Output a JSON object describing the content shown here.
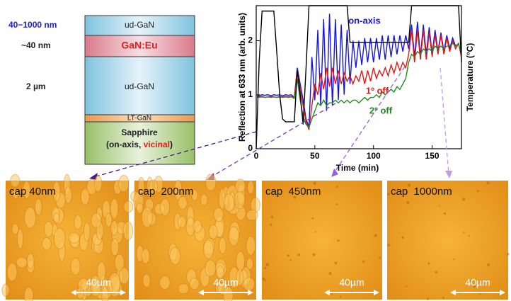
{
  "diagram": {
    "thickness_labels": [
      "40−1000 nm",
      "~40 nm",
      "2 µm"
    ],
    "layers": [
      "ud-GaN",
      "GaN:Eu",
      "ud-GaN",
      "LT-GaN"
    ],
    "substrate": {
      "name": "Sapphire",
      "orientation_prefix": "(on-axis, ",
      "orientation_highlight": "vicinal",
      "orientation_suffix": ")"
    }
  },
  "chart_data": {
    "type": "line",
    "x_label": "Time (min)",
    "y_label": "Reflection at 633 nm (arb. units)",
    "y2_label": "Temperature (°C)",
    "xlim": [
      0,
      175
    ],
    "xticks": [
      0,
      50,
      100,
      150
    ],
    "ylim": [
      0,
      2.65
    ],
    "yticks": [
      0,
      1,
      2
    ],
    "y2lim": [
      0,
      2.65
    ],
    "x": [
      0,
      2.5,
      5,
      7.5,
      10,
      12.5,
      15,
      17.5,
      20,
      22.5,
      25,
      27.5,
      30,
      32.5,
      35,
      37.5,
      40,
      42.5,
      45,
      47.5,
      50,
      52.5,
      55,
      57.5,
      60,
      62.5,
      65,
      67.5,
      70,
      72.5,
      75,
      77.5,
      80,
      82.5,
      85,
      87.5,
      90,
      92.5,
      95,
      97.5,
      100,
      102.5,
      105,
      107.5,
      110,
      112.5,
      115,
      117.5,
      120,
      122.5,
      125,
      127.5,
      130,
      132.5,
      135,
      137.5,
      140,
      142.5,
      145,
      147.5,
      150,
      152.5,
      155,
      157.5,
      160,
      162.5,
      165,
      167.5,
      170,
      172.5,
      175
    ],
    "series": [
      {
        "name": "on-axis",
        "color": "#1414e6",
        "values": [
          1.0,
          0.98,
          1.0,
          0.99,
          1.0,
          0.98,
          1.0,
          0.99,
          1.0,
          0.98,
          1.0,
          0.99,
          1.0,
          0.95,
          1.5,
          1.2,
          0.9,
          0.55,
          0.4,
          1.7,
          0.9,
          2.2,
          0.8,
          2.4,
          0.7,
          2.5,
          0.8,
          2.4,
          0.9,
          2.3,
          1.0,
          2.2,
          1.2,
          2.0,
          1.5,
          2.0,
          1.55,
          2.05,
          1.6,
          2.05,
          1.6,
          2.05,
          1.65,
          2.1,
          1.65,
          2.1,
          1.7,
          2.1,
          1.75,
          2.1,
          1.8,
          2.1,
          1.85,
          2.3,
          1.7,
          2.35,
          1.7,
          2.3,
          1.75,
          2.25,
          1.75,
          2.2,
          1.8,
          2.15,
          1.8,
          2.1,
          1.85,
          2.05,
          1.9,
          1.95,
          1.75
        ]
      },
      {
        "name": "1º off",
        "color": "#e61414",
        "values": [
          0.97,
          0.96,
          0.97,
          0.95,
          0.96,
          0.97,
          0.96,
          0.95,
          0.97,
          0.96,
          0.97,
          0.96,
          0.97,
          0.95,
          1.45,
          1.1,
          0.8,
          0.5,
          0.35,
          0.8,
          1.2,
          1.0,
          1.4,
          1.1,
          1.5,
          1.15,
          1.5,
          1.2,
          1.45,
          1.2,
          1.4,
          1.25,
          1.35,
          1.2,
          1.35,
          1.25,
          1.45,
          1.2,
          1.45,
          1.25,
          1.5,
          1.3,
          1.45,
          1.35,
          1.5,
          1.35,
          1.55,
          1.4,
          1.6,
          1.45,
          1.6,
          1.5,
          1.75,
          2.2,
          1.6,
          2.2,
          1.65,
          2.2,
          1.65,
          2.15,
          1.7,
          2.1,
          1.75,
          2.1,
          1.75,
          2.05,
          1.8,
          2.0,
          1.85,
          1.95,
          1.7
        ]
      },
      {
        "name": "2º off",
        "color": "#1e8c1e",
        "values": [
          0.96,
          0.95,
          0.96,
          0.95,
          0.96,
          0.95,
          0.96,
          0.95,
          0.96,
          0.95,
          0.96,
          0.95,
          0.96,
          0.93,
          1.3,
          0.9,
          0.6,
          0.45,
          0.4,
          0.55,
          0.7,
          0.85,
          0.8,
          0.9,
          0.8,
          0.85,
          0.85,
          0.9,
          0.85,
          0.9,
          0.85,
          0.9,
          0.85,
          0.9,
          0.9,
          0.85,
          0.9,
          0.95,
          0.9,
          0.95,
          0.95,
          1.0,
          0.95,
          1.05,
          1.0,
          1.05,
          1.1,
          1.05,
          1.15,
          1.1,
          1.2,
          1.3,
          1.6,
          1.75,
          1.7,
          1.8,
          1.75,
          1.85,
          1.8,
          1.85,
          1.8,
          1.9,
          1.85,
          1.9,
          1.85,
          1.9,
          1.9,
          1.95,
          1.9,
          1.95,
          1.75
        ]
      },
      {
        "axis": "y2",
        "color": "#000000",
        "values": [
          0,
          1.6,
          2.55,
          2.55,
          2.55,
          2.55,
          2.55,
          1.8,
          1.0,
          0.55,
          0.5,
          0.5,
          0.5,
          0.5,
          1.45,
          1.0,
          0.45,
          1.5,
          2.65,
          2.65,
          2.65,
          2.65,
          2.65,
          2.65,
          2.65,
          2.65,
          2.65,
          2.65,
          2.65,
          2.65,
          2.65,
          2.65,
          1.97,
          1.97,
          1.97,
          1.97,
          1.97,
          1.97,
          1.97,
          1.97,
          1.97,
          1.97,
          1.97,
          1.97,
          1.97,
          1.97,
          1.97,
          1.97,
          1.97,
          1.97,
          1.97,
          1.97,
          1.97,
          2.65,
          2.65,
          2.65,
          2.65,
          2.65,
          2.65,
          2.65,
          2.65,
          2.65,
          2.65,
          2.65,
          2.65,
          2.65,
          2.65,
          2.65,
          2.65,
          2.65,
          1.6
        ]
      }
    ]
  },
  "micrographs": [
    {
      "caption": "cap 40nm",
      "scale_bar": "40µm"
    },
    {
      "caption": "cap  200nm",
      "scale_bar": "40µm"
    },
    {
      "caption": "cap  450nm",
      "scale_bar": "40µm"
    },
    {
      "caption": "cap  1000nm",
      "scale_bar": "40µm"
    }
  ]
}
